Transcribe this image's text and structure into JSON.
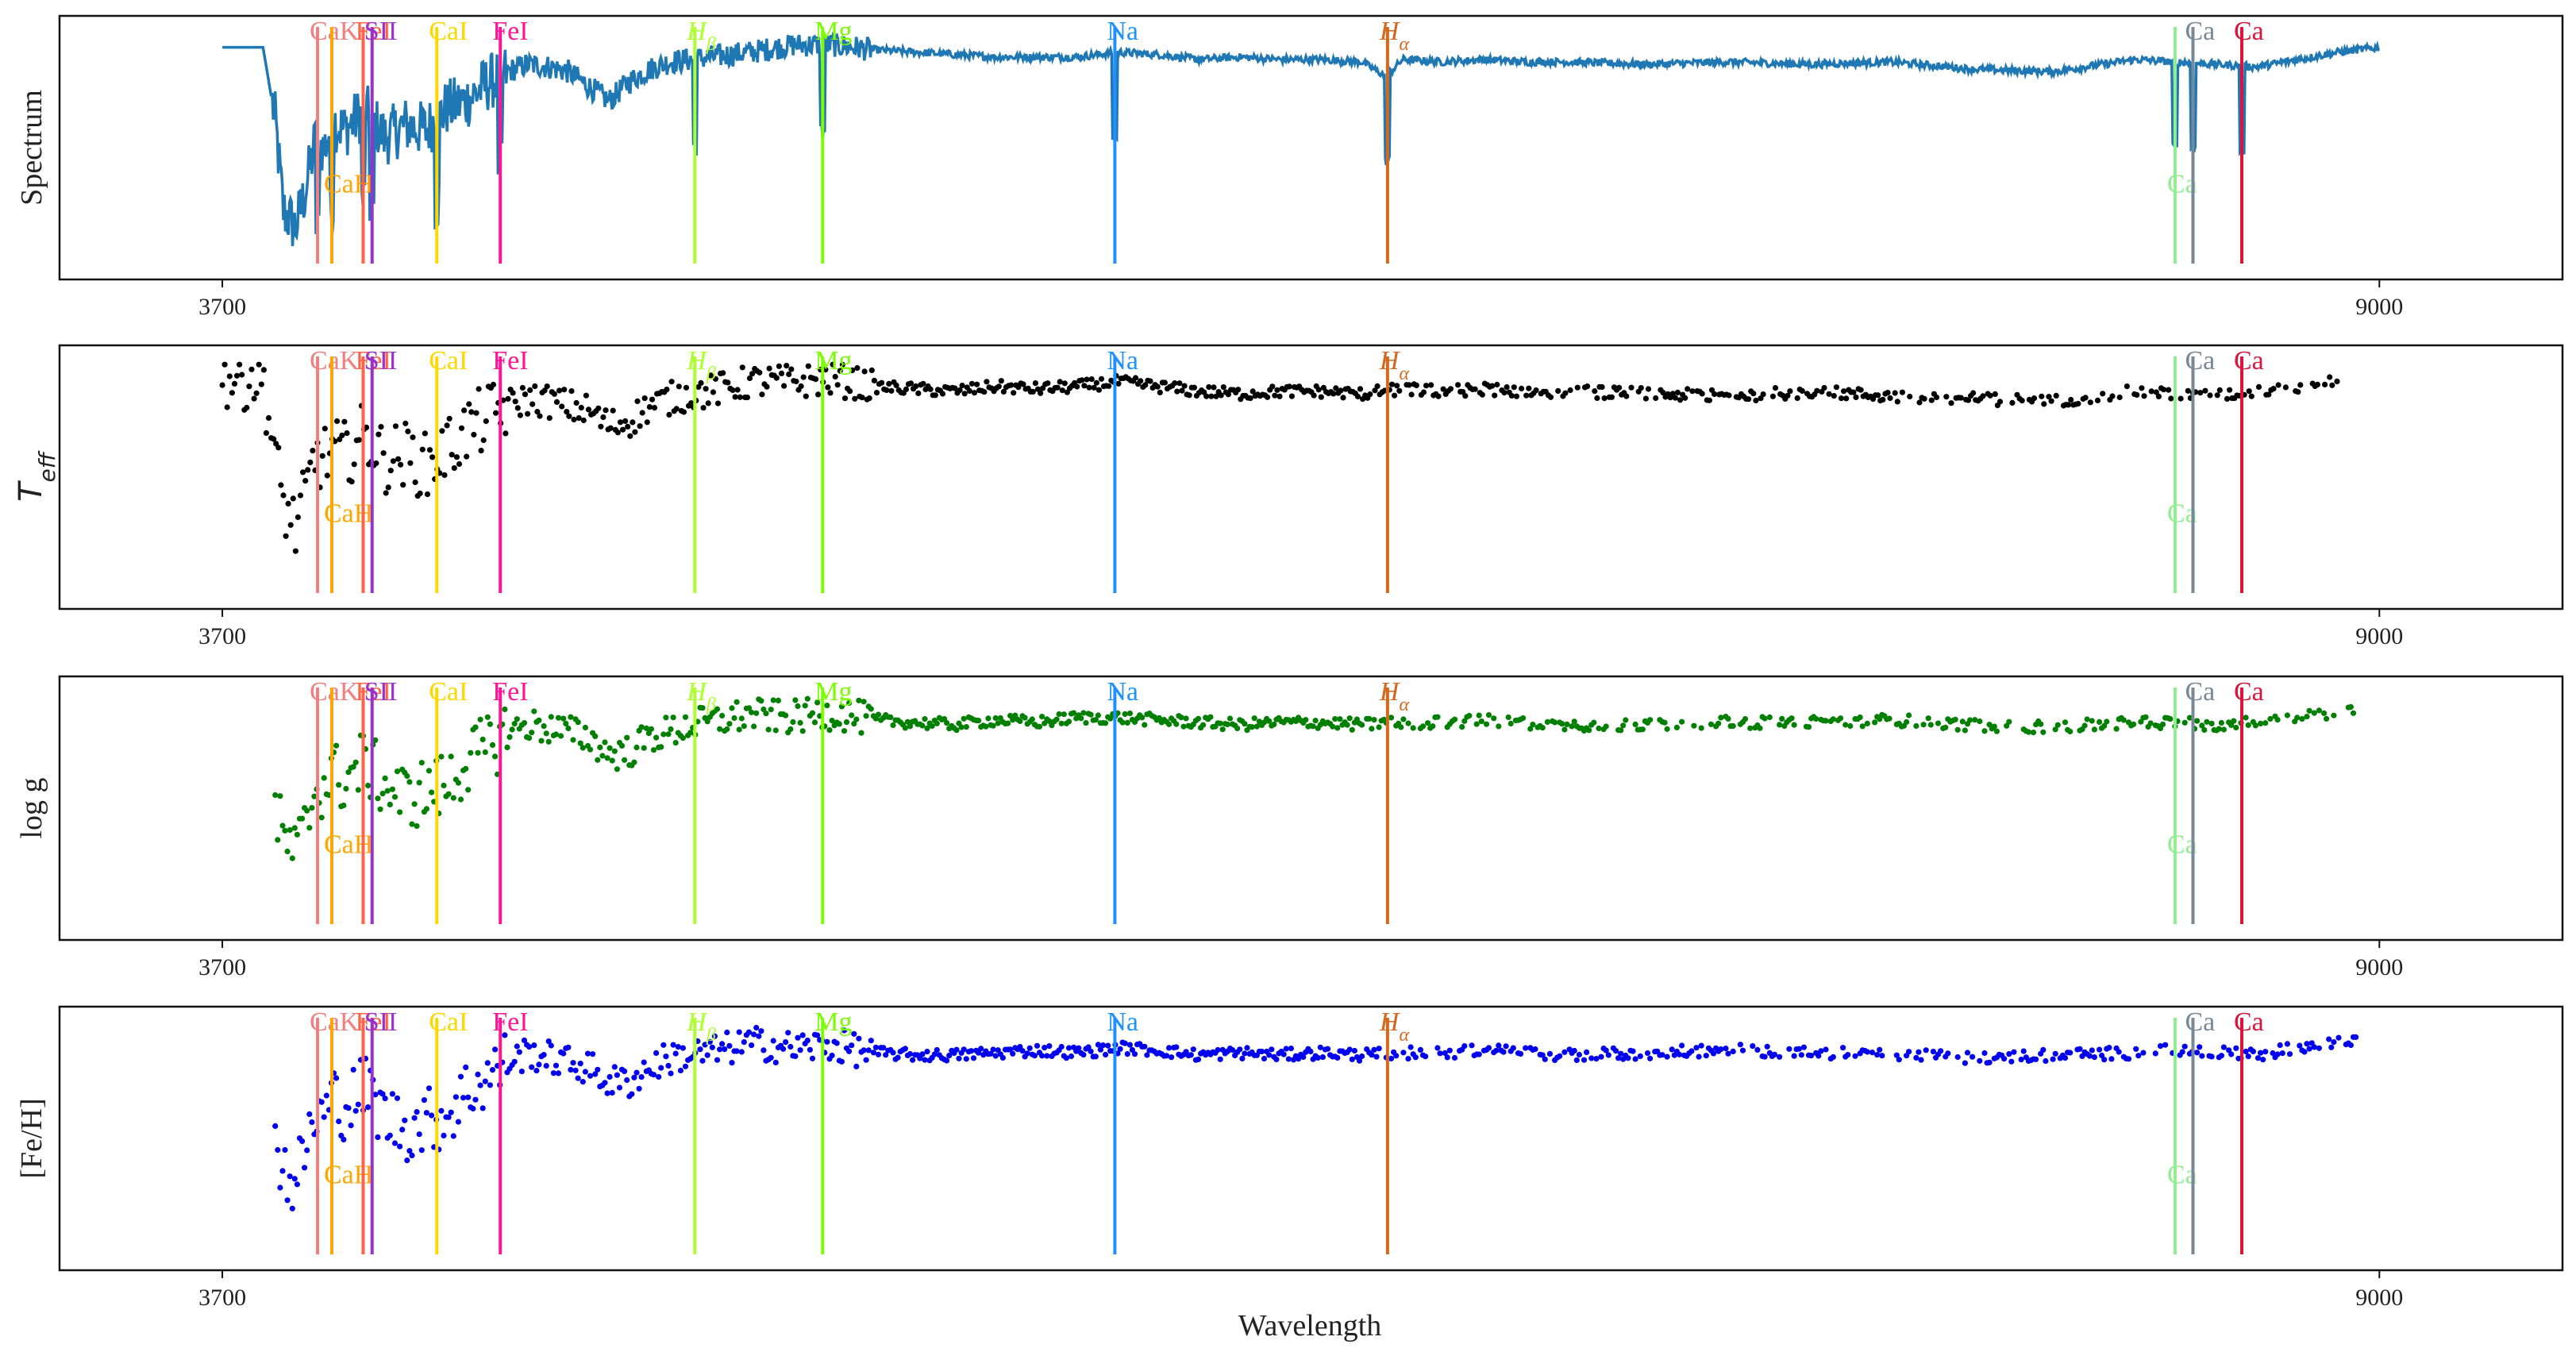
{
  "chart_data": [
    {
      "type": "line",
      "ylabel": "Spectrum",
      "xlabel": "",
      "xticks": [
        "3700",
        "9000"
      ],
      "xlim": [
        3300,
        9450
      ],
      "series_color": "#1f77b4",
      "series": [
        {
          "x": [
            3700,
            3800,
            3830,
            3850,
            3880,
            3900,
            3930,
            3950,
            3970,
            4000,
            4050,
            4100,
            4150,
            4200,
            4250,
            4300,
            4350,
            4400,
            4450,
            4500,
            4550,
            4600,
            4650,
            4700,
            4750,
            4800,
            4850,
            4900,
            4950,
            5000,
            5100,
            5200,
            5300,
            5400,
            5500,
            5600,
            5700,
            5800,
            5900,
            6000,
            6100,
            6200,
            6300,
            6400,
            6500,
            6560,
            6600,
            6700,
            6800,
            6900,
            7000,
            7200,
            7400,
            7600,
            7800,
            8000,
            8200,
            8400,
            8500,
            8600,
            8700,
            8800,
            8900,
            9000
          ],
          "y": [
            0.92,
            0.92,
            0.62,
            0.25,
            0.18,
            0.3,
            0.55,
            0.5,
            0.62,
            0.58,
            0.66,
            0.55,
            0.6,
            0.58,
            0.67,
            0.7,
            0.77,
            0.82,
            0.85,
            0.84,
            0.82,
            0.76,
            0.7,
            0.78,
            0.83,
            0.86,
            0.87,
            0.88,
            0.89,
            0.9,
            0.93,
            0.93,
            0.91,
            0.9,
            0.89,
            0.88,
            0.88,
            0.88,
            0.9,
            0.89,
            0.87,
            0.88,
            0.87,
            0.87,
            0.86,
            0.8,
            0.87,
            0.86,
            0.87,
            0.86,
            0.86,
            0.85,
            0.86,
            0.85,
            0.86,
            0.83,
            0.82,
            0.87,
            0.86,
            0.85,
            0.84,
            0.87,
            0.9,
            0.92
          ]
        }
      ]
    },
    {
      "type": "scatter",
      "ylabel": "T_eff",
      "xlabel": "",
      "xticks": [
        "3700",
        "9000"
      ],
      "xlim": [
        3300,
        9450
      ],
      "series_color": "#000000",
      "series": [
        {
          "x": [
            3700,
            3800,
            3830,
            3850,
            3880,
            3900,
            3930,
            3950,
            3970,
            4000,
            4050,
            4100,
            4150,
            4200,
            4250,
            4300,
            4350,
            4400,
            4450,
            4500,
            4550,
            4600,
            4650,
            4700,
            4750,
            4800,
            4850,
            4900,
            4950,
            5000,
            5100,
            5200,
            5300,
            5400,
            5500,
            5600,
            5700,
            5800,
            5900,
            6000,
            6100,
            6200,
            6300,
            6400,
            6500,
            6600,
            6700,
            6800,
            6900,
            7000,
            7200,
            7400,
            7600,
            7800,
            8000,
            8200,
            8400,
            8500,
            8600,
            8700,
            8800,
            8900
          ],
          "y": [
            0.92,
            0.92,
            0.58,
            0.4,
            0.3,
            0.4,
            0.6,
            0.58,
            0.62,
            0.6,
            0.68,
            0.58,
            0.6,
            0.55,
            0.62,
            0.7,
            0.75,
            0.8,
            0.83,
            0.82,
            0.8,
            0.78,
            0.72,
            0.74,
            0.8,
            0.83,
            0.85,
            0.86,
            0.88,
            0.9,
            0.9,
            0.91,
            0.88,
            0.87,
            0.86,
            0.88,
            0.87,
            0.88,
            0.9,
            0.88,
            0.86,
            0.85,
            0.86,
            0.86,
            0.85,
            0.87,
            0.86,
            0.87,
            0.86,
            0.86,
            0.85,
            0.84,
            0.86,
            0.84,
            0.83,
            0.82,
            0.86,
            0.85,
            0.84,
            0.86,
            0.88,
            0.9
          ]
        }
      ]
    },
    {
      "type": "scatter",
      "ylabel": "log g",
      "xlabel": "",
      "xticks": [
        "3700",
        "9000"
      ],
      "xlim": [
        3300,
        9450
      ],
      "series_color": "#007f00",
      "series": [
        {
          "x": [
            3830,
            3850,
            3880,
            3900,
            3930,
            3950,
            3970,
            4000,
            4050,
            4100,
            4150,
            4200,
            4250,
            4300,
            4350,
            4400,
            4450,
            4500,
            4550,
            4600,
            4650,
            4700,
            4750,
            4800,
            4850,
            4900,
            4950,
            5000,
            5100,
            5200,
            5300,
            5400,
            5500,
            5600,
            5700,
            5800,
            5900,
            6000,
            6100,
            6200,
            6300,
            6400,
            6500,
            6600,
            6700,
            6800,
            6900,
            7000,
            7200,
            7400,
            7600,
            7800,
            8000,
            8200,
            8400,
            8500,
            8600,
            8700,
            8800,
            8900,
            8950
          ],
          "y": [
            0.5,
            0.38,
            0.32,
            0.4,
            0.6,
            0.6,
            0.65,
            0.62,
            0.7,
            0.6,
            0.55,
            0.58,
            0.6,
            0.7,
            0.75,
            0.82,
            0.85,
            0.84,
            0.82,
            0.8,
            0.73,
            0.74,
            0.8,
            0.82,
            0.85,
            0.86,
            0.88,
            0.89,
            0.88,
            0.9,
            0.87,
            0.86,
            0.85,
            0.87,
            0.86,
            0.88,
            0.88,
            0.87,
            0.86,
            0.85,
            0.86,
            0.86,
            0.85,
            0.86,
            0.86,
            0.87,
            0.86,
            0.85,
            0.85,
            0.86,
            0.86,
            0.87,
            0.85,
            0.84,
            0.86,
            0.86,
            0.85,
            0.86,
            0.88,
            0.9,
            0.91
          ]
        }
      ]
    },
    {
      "type": "scatter",
      "ylabel": "[Fe/H]",
      "xlabel": "Wavelength",
      "xticks": [
        "3700",
        "9000"
      ],
      "xlim": [
        3300,
        9450
      ],
      "series_color": "#0000ee",
      "series": [
        {
          "x": [
            3830,
            3850,
            3880,
            3900,
            3930,
            3950,
            3970,
            4000,
            4050,
            4100,
            4150,
            4200,
            4250,
            4300,
            4350,
            4400,
            4450,
            4500,
            4550,
            4600,
            4650,
            4700,
            4750,
            4800,
            4850,
            4900,
            4950,
            5000,
            5100,
            5200,
            5300,
            5400,
            5500,
            5600,
            5700,
            5800,
            5900,
            6000,
            6100,
            6200,
            6300,
            6400,
            6500,
            6600,
            6700,
            6800,
            6900,
            7000,
            7200,
            7400,
            7600,
            7800,
            8000,
            8200,
            8400,
            8500,
            8600,
            8700,
            8800,
            8900,
            8950
          ],
          "y": [
            0.5,
            0.38,
            0.32,
            0.45,
            0.6,
            0.6,
            0.68,
            0.64,
            0.72,
            0.6,
            0.55,
            0.58,
            0.6,
            0.7,
            0.76,
            0.82,
            0.86,
            0.84,
            0.82,
            0.8,
            0.74,
            0.74,
            0.8,
            0.84,
            0.85,
            0.86,
            0.88,
            0.9,
            0.88,
            0.89,
            0.86,
            0.85,
            0.85,
            0.86,
            0.87,
            0.86,
            0.88,
            0.87,
            0.85,
            0.86,
            0.85,
            0.86,
            0.85,
            0.86,
            0.86,
            0.87,
            0.86,
            0.85,
            0.86,
            0.87,
            0.86,
            0.85,
            0.84,
            0.85,
            0.86,
            0.87,
            0.86,
            0.85,
            0.88,
            0.9,
            0.9
          ]
        }
      ]
    }
  ],
  "spectral_lines": [
    {
      "label": "CaK",
      "x": 3934,
      "color": "#f08080",
      "label_pos": "top"
    },
    {
      "label": "CaH",
      "x": 3969,
      "color": "#ffa500",
      "label_pos": "low"
    },
    {
      "label": "FeI",
      "x": 4046,
      "color": "#ff6347",
      "label_pos": "top"
    },
    {
      "label": "SII",
      "x": 4068,
      "color": "#9932cc",
      "label_pos": "top"
    },
    {
      "label": "CaI",
      "x": 4227,
      "color": "#ffd700",
      "label_pos": "top"
    },
    {
      "label": "FeI",
      "x": 4383,
      "color": "#ff1493",
      "label_pos": "top"
    },
    {
      "label": "H",
      "sub": "β",
      "x": 4861,
      "color": "#adff2f",
      "label_pos": "top"
    },
    {
      "label": "Mg",
      "x": 5175,
      "color": "#7cfc00",
      "label_pos": "top"
    },
    {
      "label": "Na",
      "x": 5893,
      "color": "#1e90ff",
      "label_pos": "top"
    },
    {
      "label": "H",
      "sub": "α",
      "x": 6563,
      "color": "#d2691e",
      "label_pos": "top"
    },
    {
      "label": "Ca",
      "x": 8498,
      "color": "#90ee90",
      "label_pos": "low"
    },
    {
      "label": "Ca",
      "x": 8542,
      "color": "#778899",
      "label_pos": "top"
    },
    {
      "label": "Ca",
      "x": 8662,
      "color": "#dc143c",
      "label_pos": "top"
    }
  ]
}
